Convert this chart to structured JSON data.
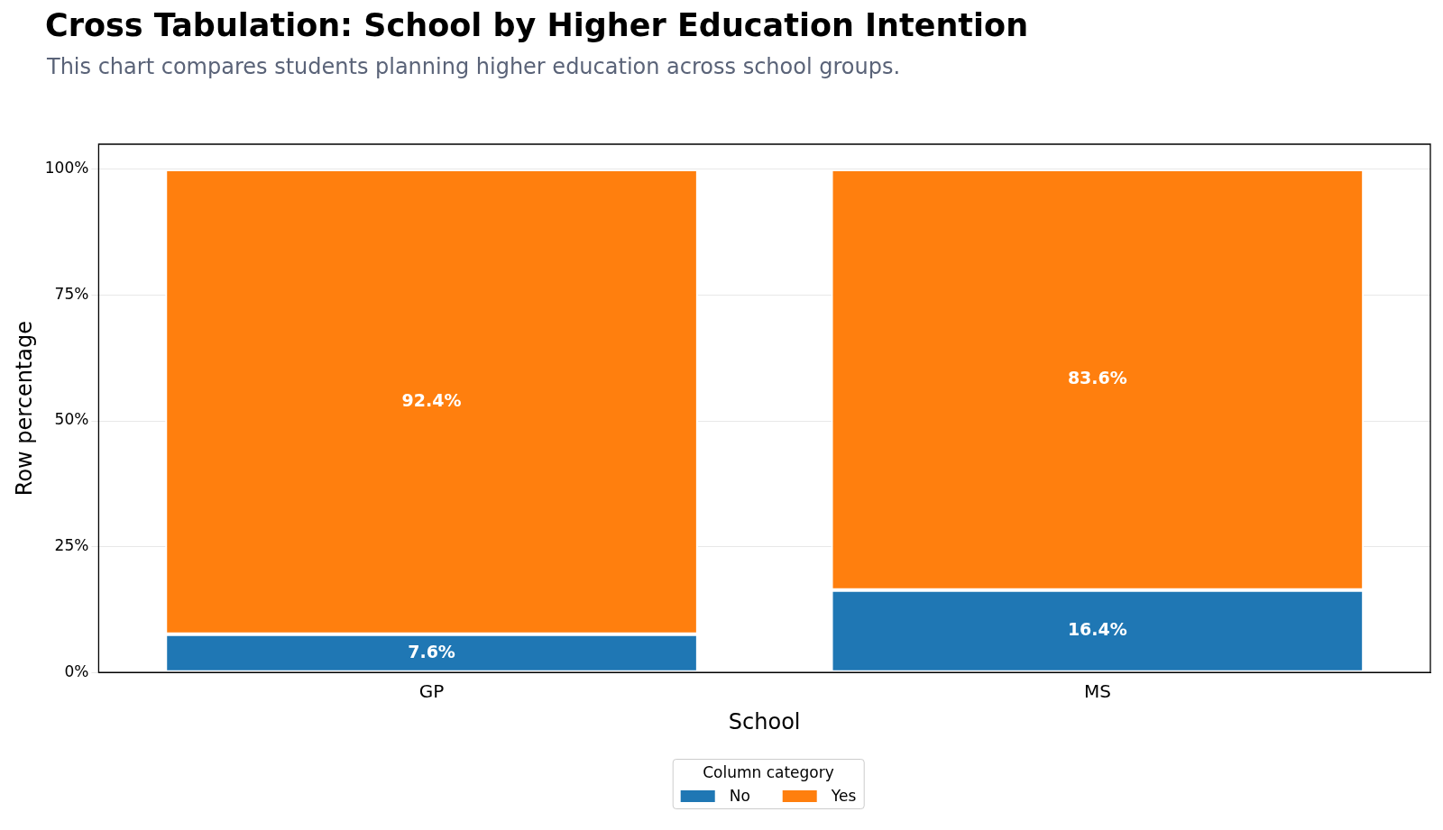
{
  "chart_data": {
    "type": "bar",
    "title": "Cross Tabulation: School by Higher Education Intention",
    "subtitle": "This chart compares students planning higher education across school groups.",
    "xlabel": "School",
    "ylabel": "Row percentage",
    "legend_title": "Column category",
    "categories": [
      "GP",
      "MS"
    ],
    "series": [
      {
        "name": "No",
        "color": "#1f77b4",
        "values": [
          7.6,
          16.4
        ],
        "value_labels": [
          "7.6%",
          "16.4%"
        ]
      },
      {
        "name": "Yes",
        "color": "#ff7f0e",
        "values": [
          92.4,
          83.6
        ],
        "value_labels": [
          "92.4%",
          "83.6%"
        ]
      }
    ],
    "stacked": true,
    "ylim": [
      0,
      105
    ],
    "yticks": [
      {
        "value": 0,
        "label": "0%"
      },
      {
        "value": 25,
        "label": "25%"
      },
      {
        "value": 50,
        "label": "50%"
      },
      {
        "value": 75,
        "label": "75%"
      },
      {
        "value": 100,
        "label": "100%"
      }
    ],
    "grid": "y",
    "legend": "bottom"
  }
}
